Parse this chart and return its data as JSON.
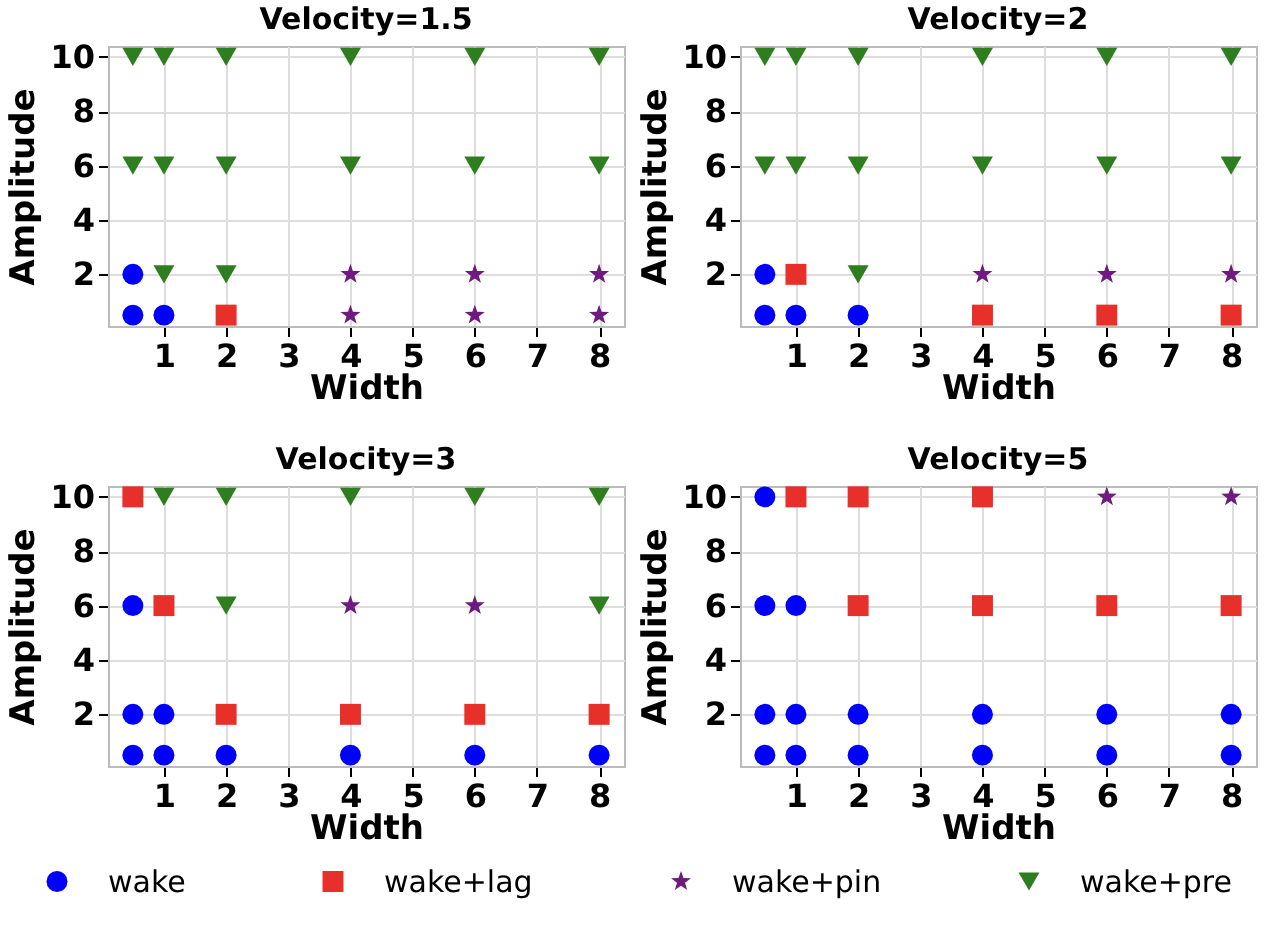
{
  "chart_data": [
    {
      "type": "scatter",
      "title": "Velocity=1.5",
      "xlabel": "Width",
      "ylabel": "Amplitude",
      "xlim": [
        0.1,
        8.4
      ],
      "ylim": [
        0.1,
        10.4
      ],
      "xticks": [
        1,
        2,
        3,
        4,
        5,
        6,
        7,
        8
      ],
      "yticks": [
        2,
        4,
        6,
        8,
        10
      ],
      "grid": true,
      "legend": "bottom",
      "series": [
        {
          "name": "wake",
          "color": "#0000ff",
          "marker": "circle",
          "x": [
            0.5,
            0.5,
            1
          ],
          "values": [
            2,
            0.5,
            0.5
          ]
        },
        {
          "name": "wake+lag",
          "color": "#e8302a",
          "marker": "square",
          "x": [
            2
          ],
          "values": [
            0.5
          ]
        },
        {
          "name": "wake+pin",
          "color": "#6e1a7e",
          "marker": "star",
          "x": [
            4,
            6,
            8,
            4,
            6,
            8
          ],
          "values": [
            2,
            2,
            2,
            0.5,
            0.5,
            0.5
          ]
        },
        {
          "name": "wake+pre",
          "color": "#2e7d1e",
          "marker": "triangle",
          "x": [
            0.5,
            1,
            2,
            4,
            6,
            8,
            0.5,
            1,
            2,
            4,
            6,
            8,
            1,
            2
          ],
          "values": [
            10,
            10,
            10,
            10,
            10,
            10,
            6,
            6,
            6,
            6,
            6,
            6,
            2,
            2
          ]
        }
      ]
    },
    {
      "type": "scatter",
      "title": "Velocity=2",
      "xlabel": "Width",
      "ylabel": "Amplitude",
      "xlim": [
        0.1,
        8.4
      ],
      "ylim": [
        0.1,
        10.4
      ],
      "xticks": [
        1,
        2,
        3,
        4,
        5,
        6,
        7,
        8
      ],
      "yticks": [
        2,
        4,
        6,
        8,
        10
      ],
      "grid": true,
      "series": [
        {
          "color": "#0000ff",
          "marker": "circle",
          "x": [
            0.5,
            0.5,
            1,
            2
          ],
          "values": [
            2,
            0.5,
            0.5,
            0.5
          ]
        },
        {
          "color": "#e8302a",
          "marker": "square",
          "x": [
            1,
            4,
            6,
            8
          ],
          "values": [
            2,
            0.5,
            0.5,
            0.5
          ]
        },
        {
          "color": "#6e1a7e",
          "marker": "star",
          "x": [
            4,
            6,
            8
          ],
          "values": [
            2,
            2,
            2
          ]
        },
        {
          "color": "#2e7d1e",
          "marker": "triangle",
          "x": [
            0.5,
            1,
            2,
            4,
            6,
            8,
            0.5,
            1,
            2,
            4,
            6,
            8,
            2
          ],
          "values": [
            10,
            10,
            10,
            10,
            10,
            10,
            6,
            6,
            6,
            6,
            6,
            6,
            2
          ]
        }
      ]
    },
    {
      "type": "scatter",
      "title": "Velocity=3",
      "xlabel": "Width",
      "ylabel": "Amplitude",
      "xlim": [
        0.1,
        8.4
      ],
      "ylim": [
        0.1,
        10.4
      ],
      "xticks": [
        1,
        2,
        3,
        4,
        5,
        6,
        7,
        8
      ],
      "yticks": [
        2,
        4,
        6,
        8,
        10
      ],
      "grid": true,
      "series": [
        {
          "color": "#0000ff",
          "marker": "circle",
          "x": [
            0.5,
            0.5,
            1,
            0.5,
            1,
            2,
            4,
            6,
            8
          ],
          "values": [
            6,
            2,
            2,
            0.5,
            0.5,
            0.5,
            0.5,
            0.5,
            0.5
          ]
        },
        {
          "color": "#e8302a",
          "marker": "square",
          "x": [
            0.5,
            1,
            2,
            4,
            6,
            8
          ],
          "values": [
            10,
            6,
            2,
            2,
            2,
            2
          ]
        },
        {
          "color": "#6e1a7e",
          "marker": "star",
          "x": [
            4,
            6
          ],
          "values": [
            6,
            6
          ]
        },
        {
          "color": "#2e7d1e",
          "marker": "triangle",
          "x": [
            1,
            2,
            4,
            6,
            8,
            2,
            8
          ],
          "values": [
            10,
            10,
            10,
            10,
            10,
            6,
            6
          ]
        }
      ]
    },
    {
      "type": "scatter",
      "title": "Velocity=5",
      "xlabel": "Width",
      "ylabel": "Amplitude",
      "xlim": [
        0.1,
        8.4
      ],
      "ylim": [
        0.1,
        10.4
      ],
      "xticks": [
        1,
        2,
        3,
        4,
        5,
        6,
        7,
        8
      ],
      "yticks": [
        2,
        4,
        6,
        8,
        10
      ],
      "grid": true,
      "series": [
        {
          "color": "#0000ff",
          "marker": "circle",
          "x": [
            0.5,
            0.5,
            1,
            0.5,
            1,
            2,
            4,
            6,
            8,
            0.5,
            1,
            2,
            4,
            6,
            8
          ],
          "values": [
            10,
            6,
            6,
            2,
            2,
            2,
            2,
            2,
            2,
            0.5,
            0.5,
            0.5,
            0.5,
            0.5,
            0.5
          ]
        },
        {
          "color": "#e8302a",
          "marker": "square",
          "x": [
            1,
            2,
            4,
            2,
            4,
            6,
            8
          ],
          "values": [
            10,
            10,
            10,
            6,
            6,
            6,
            6
          ]
        },
        {
          "color": "#6e1a7e",
          "marker": "star",
          "x": [
            6,
            8
          ],
          "values": [
            10,
            10
          ]
        }
      ]
    }
  ]
}
